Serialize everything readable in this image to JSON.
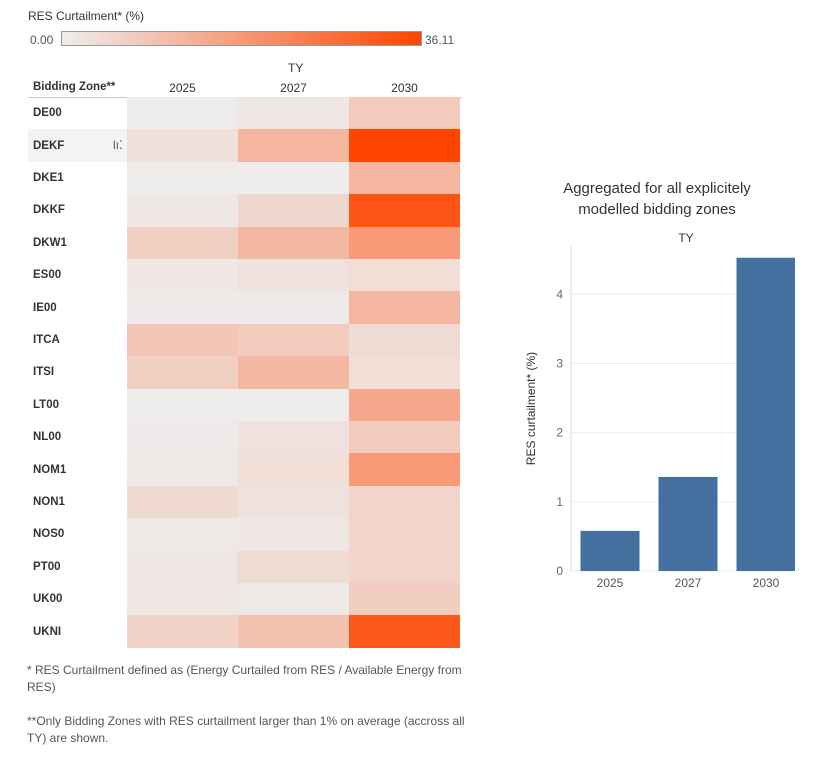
{
  "legend": {
    "title": "RES Curtailment* (%)",
    "min": "0.00",
    "max": "36.11",
    "color_low": "#eeeeee",
    "color_high": "#ff4500"
  },
  "heatmap": {
    "column_group_title": "TY",
    "row_header": "Bidding Zone**",
    "columns": [
      "2025",
      "2027",
      "2030"
    ],
    "rows": [
      {
        "zone": "DE00",
        "values": [
          0.4,
          1.5,
          7.5
        ]
      },
      {
        "zone": "DEKF",
        "values": [
          3.0,
          12.0,
          36.1
        ]
      },
      {
        "zone": "DKE1",
        "values": [
          0.4,
          0.3,
          12.0
        ]
      },
      {
        "zone": "DKKF",
        "values": [
          1.5,
          5.0,
          33.0
        ]
      },
      {
        "zone": "DKW1",
        "values": [
          6.5,
          11.5,
          18.0
        ]
      },
      {
        "zone": "ES00",
        "values": [
          1.5,
          2.5,
          3.5
        ]
      },
      {
        "zone": "IE00",
        "values": [
          0.8,
          0.8,
          12.0
        ]
      },
      {
        "zone": "ITCA",
        "values": [
          8.5,
          7.5,
          4.0
        ]
      },
      {
        "zone": "ITSI",
        "values": [
          6.5,
          11.5,
          3.5
        ]
      },
      {
        "zone": "LT00",
        "values": [
          0.3,
          0.3,
          15.0
        ]
      },
      {
        "zone": "NL00",
        "values": [
          0.8,
          2.5,
          7.5
        ]
      },
      {
        "zone": "NOM1",
        "values": [
          1.0,
          3.5,
          18.0
        ]
      },
      {
        "zone": "NON1",
        "values": [
          4.5,
          2.5,
          5.5
        ]
      },
      {
        "zone": "NOS0",
        "values": [
          1.0,
          1.5,
          5.5
        ]
      },
      {
        "zone": "PT00",
        "values": [
          1.5,
          4.0,
          5.5
        ]
      },
      {
        "zone": "UK00",
        "values": [
          1.5,
          1.0,
          7.0
        ]
      },
      {
        "zone": "UKNI",
        "values": [
          6.0,
          9.5,
          32.0
        ]
      }
    ]
  },
  "footnotes": {
    "note1": "* RES Curtailment defined as (Energy Curtailed from RES / Available Energy from RES)",
    "note2": "**Only Bidding Zones with RES curtailment larger than 1% on average (accross all TY) are shown."
  },
  "chart_data": {
    "type": "bar",
    "title_line1": "Aggregated for all explicitely",
    "title_line2": "modelled  bidding zones",
    "column_group_title": "TY",
    "categories": [
      "2025",
      "2027",
      "2030"
    ],
    "values": [
      0.58,
      1.36,
      4.53
    ],
    "ylabel": "RES curtailment* (%)",
    "ylim": [
      0,
      4.7
    ],
    "yticks": [
      "0",
      "1",
      "2",
      "3",
      "4"
    ],
    "bar_color": "#4470a0",
    "grid": true
  }
}
